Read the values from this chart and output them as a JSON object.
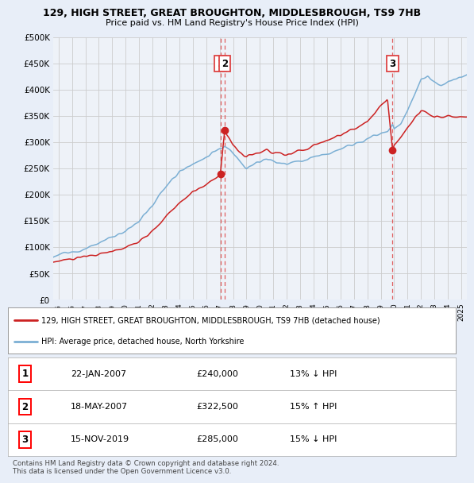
{
  "title_line1": "129, HIGH STREET, GREAT BROUGHTON, MIDDLESBROUGH, TS9 7HB",
  "title_line2": "Price paid vs. HM Land Registry's House Price Index (HPI)",
  "xmin": 1994.6,
  "xmax": 2025.4,
  "ymin": 0,
  "ymax": 500000,
  "yticks": [
    0,
    50000,
    100000,
    150000,
    200000,
    250000,
    300000,
    350000,
    400000,
    450000,
    500000
  ],
  "ytick_labels": [
    "£0",
    "£50K",
    "£100K",
    "£150K",
    "£200K",
    "£250K",
    "£300K",
    "£350K",
    "£400K",
    "£450K",
    "£500K"
  ],
  "xticks": [
    1995,
    1996,
    1997,
    1998,
    1999,
    2000,
    2001,
    2002,
    2003,
    2004,
    2005,
    2006,
    2007,
    2008,
    2009,
    2010,
    2011,
    2012,
    2013,
    2014,
    2015,
    2016,
    2017,
    2018,
    2019,
    2020,
    2021,
    2022,
    2023,
    2024,
    2025
  ],
  "hpi_color": "#7bafd4",
  "price_color": "#cc2222",
  "sale1_x": 2007.05,
  "sale1_y": 240000,
  "sale2_x": 2007.37,
  "sale2_y": 322500,
  "sale3_x": 2019.88,
  "sale3_y": 285000,
  "sale_line_color": "#dd4444",
  "legend_red_label": "129, HIGH STREET, GREAT BROUGHTON, MIDDLESBROUGH, TS9 7HB (detached house)",
  "legend_blue_label": "HPI: Average price, detached house, North Yorkshire",
  "table_rows": [
    [
      "1",
      "22-JAN-2007",
      "£240,000",
      "13% ↓ HPI"
    ],
    [
      "2",
      "18-MAY-2007",
      "£322,500",
      "15% ↑ HPI"
    ],
    [
      "3",
      "15-NOV-2019",
      "£285,000",
      "15% ↓ HPI"
    ]
  ],
  "footnote": "Contains HM Land Registry data © Crown copyright and database right 2024.\nThis data is licensed under the Open Government Licence v3.0.",
  "bg_color": "#e8eef8",
  "plot_bg_color": "#eef2f8",
  "grid_color": "#cccccc",
  "legend_bg": "#ffffff",
  "table_bg": "#ffffff"
}
